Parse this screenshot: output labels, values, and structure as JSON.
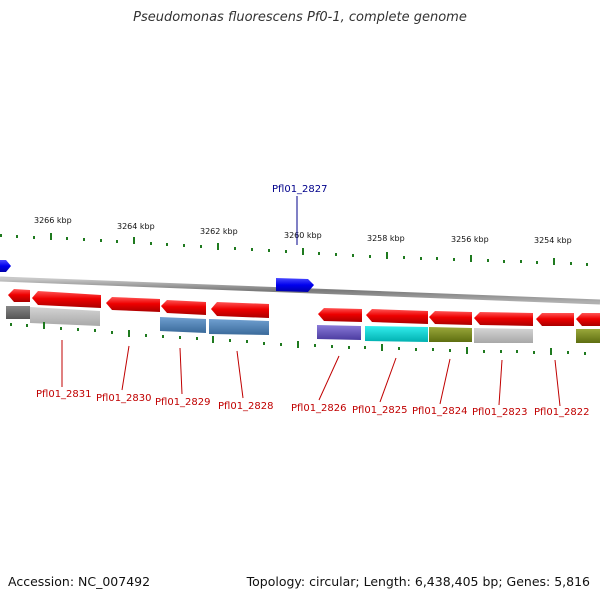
{
  "title": "Pseudomonas fluorescens Pf0-1, complete genome",
  "footer": {
    "accession": "Accession: NC_007492",
    "summary": "Topology: circular; Length: 6,438,405 bp; Genes: 5,816"
  },
  "scale_labels": [
    "3266 kbp",
    "3264 kbp",
    "3262 kbp",
    "3260 kbp",
    "3258 kbp",
    "3256 kbp",
    "3254 kbp"
  ],
  "highlighted_gene": "Pfl01_2827",
  "gene_labels": [
    "Pfl01_2831",
    "Pfl01_2830",
    "Pfl01_2829",
    "Pfl01_2828",
    "Pfl01_2826",
    "Pfl01_2825",
    "Pfl01_2824",
    "Pfl01_2823",
    "Pfl01_2822"
  ],
  "colors": {
    "backbone": "#8a8a8a",
    "reverse_gene": "#ee1111",
    "forward_gene": "#1010ee",
    "tick": "#1f7a1f",
    "label_reverse": "#c00000",
    "label_forward": "#00008b"
  }
}
